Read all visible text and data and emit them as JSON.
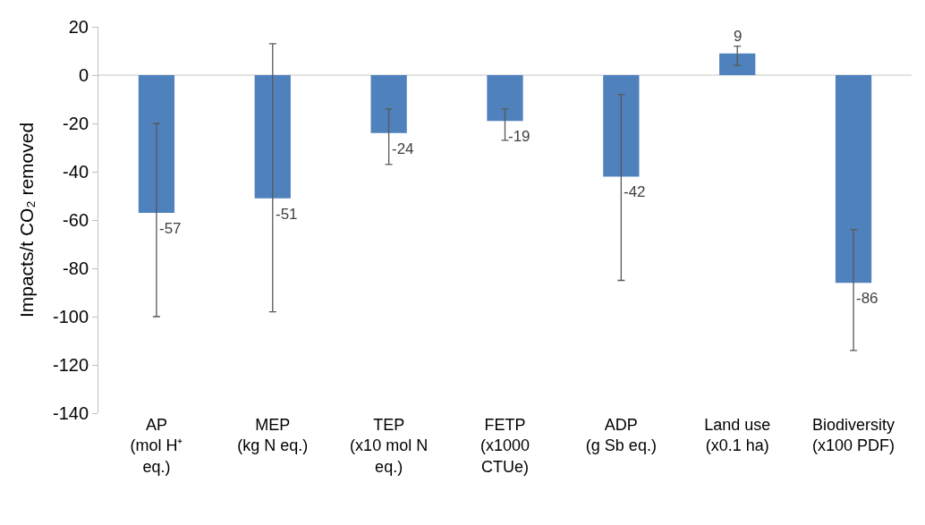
{
  "chart_data": {
    "type": "bar",
    "ylabel": "Impacts/t CO₂ removed",
    "categories": [
      "AP (mol H⁺ eq.)",
      "MEP (kg N eq.)",
      "TEP (x10 mol N eq.)",
      "FETP (x1000 CTUe)",
      "ADP (g Sb eq.)",
      "Land use (x0.1 ha)",
      "Biodiversity (x100 PDF)"
    ],
    "values": [
      -57,
      -51,
      -24,
      -19,
      -42,
      9,
      -86
    ],
    "errors": [
      [
        -100,
        -20
      ],
      [
        -98,
        13
      ],
      [
        -37,
        -14
      ],
      [
        -27,
        -14
      ],
      [
        -85,
        -8
      ],
      [
        4,
        12
      ],
      [
        -114,
        -64
      ]
    ],
    "color": "#4f81bd",
    "data_labels": true,
    "grid": false,
    "legend": false,
    "ref_lines": [
      {
        "axis": "y",
        "value": 0,
        "color": "#d9d9d9"
      }
    ],
    "ylim": [
      -140,
      20
    ],
    "yticks": [
      -140,
      -120,
      -100,
      -80,
      -60,
      -40,
      -20,
      0,
      20
    ]
  }
}
